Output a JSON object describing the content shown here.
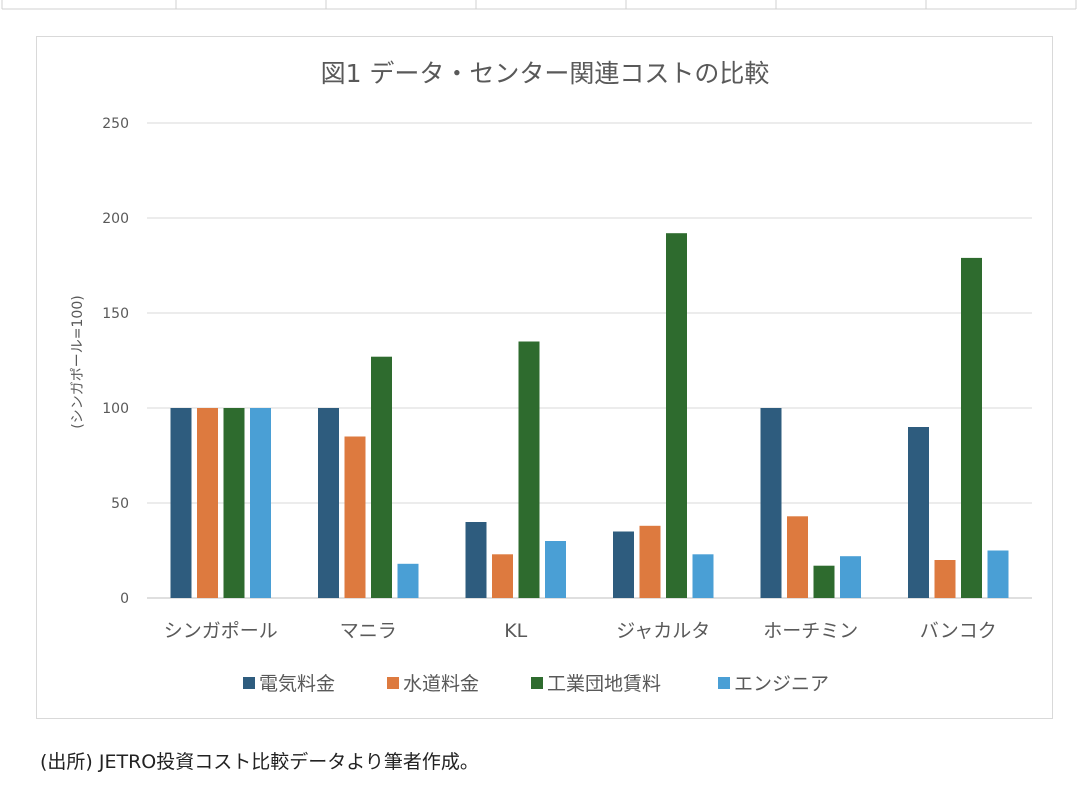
{
  "chart_data": {
    "type": "bar",
    "title": "図1 データ・センター関連コストの比較",
    "ylabel": "(シンガポール=100)",
    "xlabel": "",
    "ylim": [
      0,
      250
    ],
    "yticks": [
      0,
      50,
      100,
      150,
      200,
      250
    ],
    "grid": true,
    "legend_position": "bottom",
    "categories": [
      "シンガポール",
      "マニラ",
      "KL",
      "ジャカルタ",
      "ホーチミン",
      "バンコク"
    ],
    "series": [
      {
        "name": "電気料金",
        "color": "#2e5c7e",
        "values": [
          100,
          100,
          40,
          35,
          100,
          90
        ]
      },
      {
        "name": "水道料金",
        "color": "#dd7a3f",
        "values": [
          100,
          85,
          23,
          38,
          43,
          20
        ]
      },
      {
        "name": "工業団地賃料",
        "color": "#2e6b2e",
        "values": [
          100,
          127,
          135,
          192,
          17,
          179
        ]
      },
      {
        "name": "エンジニア",
        "color": "#4a9fd5",
        "values": [
          100,
          18,
          30,
          23,
          22,
          25
        ]
      }
    ]
  },
  "caption": "(出所) JETRO投資コスト比較データより筆者作成。"
}
